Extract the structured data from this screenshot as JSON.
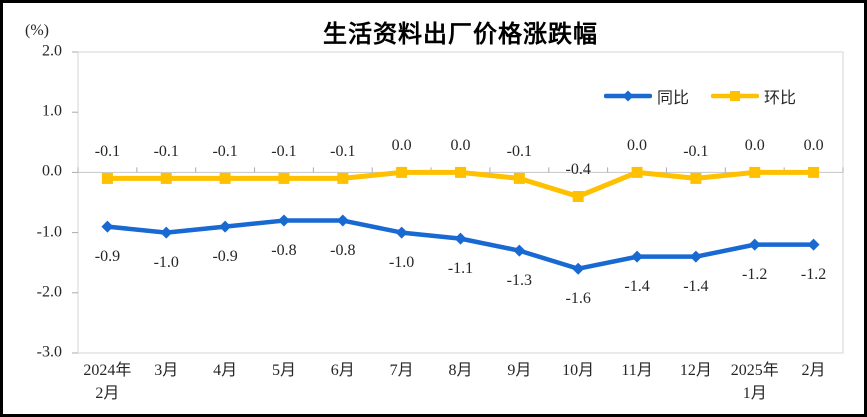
{
  "chart_data": {
    "type": "line",
    "title": "生活资料出厂价格涨跌幅",
    "y_axis": {
      "unit": "(%)",
      "tick_labels": [
        "2.0",
        "1.0",
        "0.0",
        "-1.0",
        "-2.0",
        "-3.0"
      ],
      "tick_values": [
        2,
        1,
        0,
        -1,
        -2,
        -3
      ],
      "max": 2,
      "min": -3,
      "grid": "zero-line-only"
    },
    "x_axis": {
      "categories": [
        [
          "2024年",
          "2月"
        ],
        [
          "3月"
        ],
        [
          "4月"
        ],
        [
          "5月"
        ],
        [
          "6月"
        ],
        [
          "7月"
        ],
        [
          "8月"
        ],
        [
          "9月"
        ],
        [
          "10月"
        ],
        [
          "11月"
        ],
        [
          "12月"
        ],
        [
          "2025年",
          "1月"
        ],
        [
          "2月"
        ]
      ]
    },
    "series": [
      {
        "name": "同比",
        "slug": "tongbi",
        "color": "#1869D2",
        "marker": "diamond",
        "label_position": "below",
        "values": [
          -0.9,
          -1.0,
          -0.9,
          -0.8,
          -0.8,
          -1.0,
          -1.1,
          -1.3,
          -1.6,
          -1.4,
          -1.4,
          -1.2,
          -1.2
        ],
        "labels": [
          "-0.9",
          "-1.0",
          "-0.9",
          "-0.8",
          "-0.8",
          "-1.0",
          "-1.1",
          "-1.3",
          "-1.6",
          "-1.4",
          "-1.4",
          "-1.2",
          "-1.2"
        ]
      },
      {
        "name": "环比",
        "slug": "huanbi",
        "color": "#FFC000",
        "marker": "square",
        "label_position": "above",
        "values": [
          -0.1,
          -0.1,
          -0.1,
          -0.1,
          -0.1,
          0.0,
          0.0,
          -0.1,
          -0.4,
          0.0,
          -0.1,
          0.0,
          0.0
        ],
        "labels": [
          "-0.1",
          "-0.1",
          "-0.1",
          "-0.1",
          "-0.1",
          "0.0",
          "0.0",
          "-0.1",
          "-0.4",
          "0.0",
          "-0.1",
          "0.0",
          "0.0"
        ]
      }
    ],
    "legend_position": "top-right",
    "colors": {
      "plot_border": "#D6D6D6",
      "zero_line": "#C6C6C6",
      "axis_tick": "#ABABAB",
      "label_text": "#262626",
      "title_text": "#000000"
    }
  }
}
